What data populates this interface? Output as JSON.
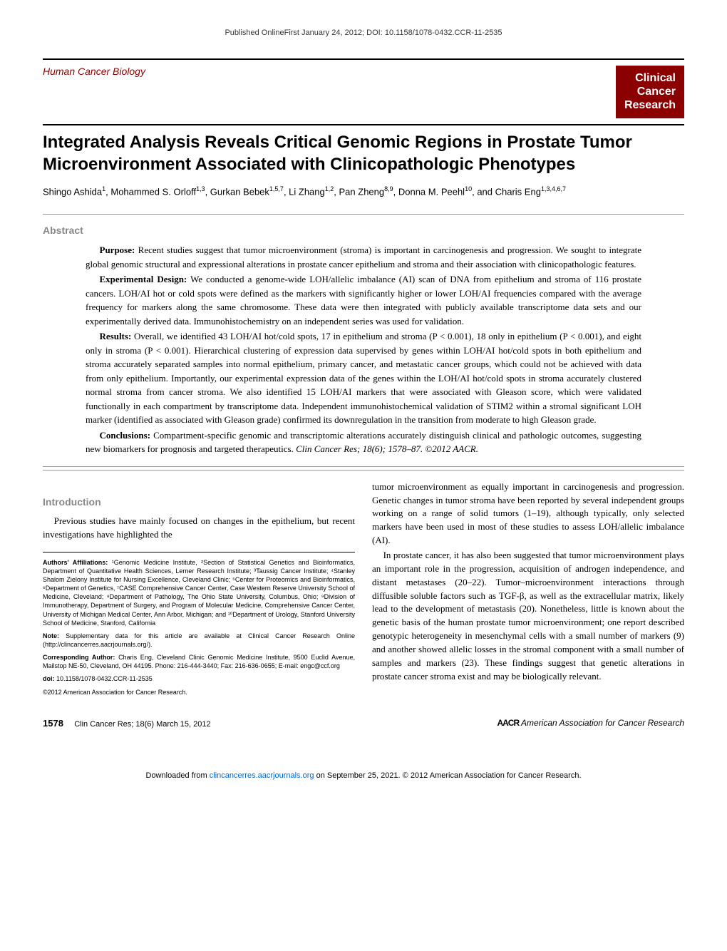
{
  "top_header": "Published OnlineFirst January 24, 2012; DOI: 10.1158/1078-0432.CCR-11-2535",
  "section_label": "Human Cancer Biology",
  "journal_badge_l1": "Clinical",
  "journal_badge_l2": "Cancer",
  "journal_badge_l3": "Research",
  "title": "Integrated Analysis Reveals Critical Genomic Regions in Prostate Tumor Microenvironment Associated with Clinicopathologic Phenotypes",
  "authors_html": "Shingo Ashida<sup>1</sup>, Mohammed S. Orloff<sup>1,3</sup>, Gurkan Bebek<sup>1,5,7</sup>, Li Zhang<sup>1,2</sup>, Pan Zheng<sup>8,9</sup>, Donna M. Peehl<sup>10</sup>, and Charis Eng<sup>1,3,4,6,7</sup>",
  "abstract_label": "Abstract",
  "abstract": {
    "purpose": "Recent studies suggest that tumor microenvironment (stroma) is important in carcinogenesis and progression. We sought to integrate global genomic structural and expressional alterations in prostate cancer epithelium and stroma and their association with clinicopathologic features.",
    "design": "We conducted a genome-wide LOH/allelic imbalance (AI) scan of DNA from epithelium and stroma of 116 prostate cancers. LOH/AI hot or cold spots were defined as the markers with significantly higher or lower LOH/AI frequencies compared with the average frequency for markers along the same chromosome. These data were then integrated with publicly available transcriptome data sets and our experimentally derived data. Immunohistochemistry on an independent series was used for validation.",
    "results": "Overall, we identified 43 LOH/AI hot/cold spots, 17 in epithelium and stroma (P < 0.001), 18 only in epithelium (P < 0.001), and eight only in stroma (P < 0.001). Hierarchical clustering of expression data supervised by genes within LOH/AI hot/cold spots in both epithelium and stroma accurately separated samples into normal epithelium, primary cancer, and metastatic cancer groups, which could not be achieved with data from only epithelium. Importantly, our experimental expression data of the genes within the LOH/AI hot/cold spots in stroma accurately clustered normal stroma from cancer stroma. We also identified 15 LOH/AI markers that were associated with Gleason score, which were validated functionally in each compartment by transcriptome data. Independent immunohistochemical validation of STIM2 within a stromal significant LOH marker (identified as associated with Gleason grade) confirmed its downregulation in the transition from moderate to high Gleason grade.",
    "conclusions": "Compartment-specific genomic and transcriptomic alterations accurately distinguish clinical and pathologic outcomes, suggesting new biomarkers for prognosis and targeted therapeutics.",
    "citation": "Clin Cancer Res; 18(6); 1578–87. ©2012 AACR."
  },
  "intro_label": "Introduction",
  "intro_p1": "Previous studies have mainly focused on changes in the epithelium, but recent investigations have highlighted the",
  "affiliations": "Genomic Medicine Institute, ²Section of Statistical Genetics and Bioinformatics, Department of Quantitative Health Sciences, Lerner Research Institute; ³Taussig Cancer Institute; ⁴Stanley Shalom Zielony Institute for Nursing Excellence, Cleveland Clinic; ⁵Center for Proteomics and Bioinformatics, ⁶Department of Genetics, ⁷CASE Comprehensive Cancer Center, Case Western Reserve University School of Medicine, Cleveland; ⁸Department of Pathology, The Ohio State University, Columbus, Ohio; ⁹Division of Immunotherapy, Department of Surgery, and Program of Molecular Medicine, Comprehensive Cancer Center, University of Michigan Medical Center, Ann Arbor, Michigan; and ¹⁰Department of Urology, Stanford University School of Medicine, Stanford, California",
  "note": "Supplementary data for this article are available at Clinical Cancer Research Online (http://clincancerres.aacrjournals.org/).",
  "corresponding": "Charis Eng, Cleveland Clinic Genomic Medicine Institute, 9500 Euclid Avenue, Mailstop NE-50, Cleveland, OH 44195. Phone: 216-444-3440; Fax: 216-636-0655; E-mail: engc@ccf.org",
  "doi": "10.1158/1078-0432.CCR-11-2535",
  "copyright": "©2012 American Association for Cancer Research.",
  "col2_p1": "tumor microenvironment as equally important in carcinogenesis and progression. Genetic changes in tumor stroma have been reported by several independent groups working on a range of solid tumors (1–19), although typically, only selected markers have been used in most of these studies to assess LOH/allelic imbalance (AI).",
  "col2_p2": "In prostate cancer, it has also been suggested that tumor microenvironment plays an important role in the progression, acquisition of androgen independence, and distant metastases (20–22). Tumor–microenvironment interactions through diffusible soluble factors such as TGF-β, as well as the extracellular matrix, likely lead to the development of metastasis (20). Nonetheless, little is known about the genetic basis of the human prostate tumor microenvironment; one report described genotypic heterogeneity in mesenchymal cells with a small number of markers (9) and another showed allelic losses in the stromal component with a small number of samples and markers (23). These findings suggest that genetic alterations in prostate cancer stroma exist and may be biologically relevant.",
  "footer": {
    "pagenum": "1578",
    "citation": "Clin Cancer Res; 18(6) March 15, 2012",
    "aacr": "American Association for Cancer Research"
  },
  "download_note_pre": "Downloaded from ",
  "download_link": "clincancerres.aacrjournals.org",
  "download_note_post": " on September 25, 2021. © 2012 American Association for Cancer Research.",
  "colors": {
    "accent": "#8b0000",
    "gray": "#888888",
    "text": "#000000",
    "link": "#0066cc"
  }
}
